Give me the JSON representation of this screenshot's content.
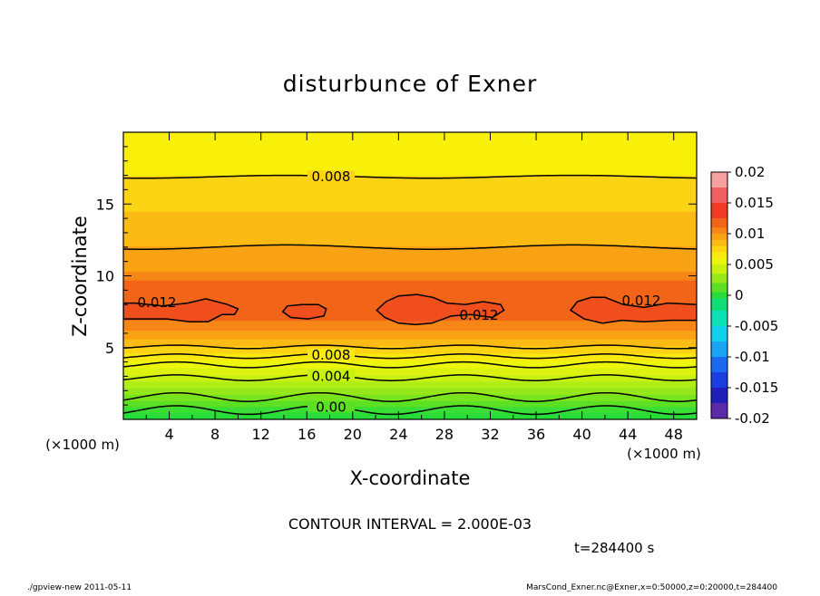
{
  "chart_data": {
    "type": "heatmap",
    "title": "disturbunce of Exner",
    "xlabel": "X-coordinate",
    "ylabel": "Z-coordinate",
    "x_unit": "(×1000 m)",
    "y_unit": "(×1000 m)",
    "xlim": [
      0,
      50
    ],
    "ylim": [
      0,
      20
    ],
    "x_ticks": [
      4,
      8,
      12,
      16,
      20,
      24,
      28,
      32,
      36,
      40,
      44,
      48
    ],
    "y_ticks": [
      5,
      10,
      15
    ],
    "colorbar": {
      "ticks": [
        "0.02",
        "0.015",
        "0.01",
        "0.005",
        "0",
        "-0.005",
        "-0.01",
        "-0.015",
        "-0.02"
      ],
      "levels": [
        {
          "lo": 0.0175,
          "hi": 0.02,
          "color": "#f7a0a0"
        },
        {
          "lo": 0.015,
          "hi": 0.0175,
          "color": "#f06060"
        },
        {
          "lo": 0.0125,
          "hi": 0.015,
          "color": "#f03c24"
        },
        {
          "lo": 0.011,
          "hi": 0.0125,
          "color": "#f26418"
        },
        {
          "lo": 0.01,
          "hi": 0.011,
          "color": "#f68616"
        },
        {
          "lo": 0.009,
          "hi": 0.01,
          "color": "#f9a214"
        },
        {
          "lo": 0.008,
          "hi": 0.009,
          "color": "#fbbb14"
        },
        {
          "lo": 0.007,
          "hi": 0.008,
          "color": "#fdd414"
        },
        {
          "lo": 0.006,
          "hi": 0.007,
          "color": "#f8ea10"
        },
        {
          "lo": 0.005,
          "hi": 0.006,
          "color": "#eef50c"
        },
        {
          "lo": 0.0035,
          "hi": 0.005,
          "color": "#c8f010"
        },
        {
          "lo": 0.002,
          "hi": 0.0035,
          "color": "#96e81a"
        },
        {
          "lo": 0.0005,
          "hi": 0.002,
          "color": "#5ce024"
        },
        {
          "lo": -0.0005,
          "hi": 0.0005,
          "color": "#28dc3a"
        },
        {
          "lo": -0.0025,
          "hi": -0.0005,
          "color": "#10dc78"
        },
        {
          "lo": -0.005,
          "hi": -0.0025,
          "color": "#0ce0b4"
        },
        {
          "lo": -0.0075,
          "hi": -0.005,
          "color": "#14d0f0"
        },
        {
          "lo": -0.01,
          "hi": -0.0075,
          "color": "#1aa4f4"
        },
        {
          "lo": -0.0125,
          "hi": -0.01,
          "color": "#1a6af0"
        },
        {
          "lo": -0.015,
          "hi": -0.0125,
          "color": "#1a3ee0"
        },
        {
          "lo": -0.0175,
          "hi": -0.015,
          "color": "#2020b8"
        },
        {
          "lo": -0.02,
          "hi": -0.0175,
          "color": "#5a2aa8"
        }
      ]
    },
    "bands": [
      {
        "z0": 0,
        "z1": 0.45,
        "color": "#28dc3a"
      },
      {
        "z0": 0.45,
        "z1": 0.9,
        "color": "#3ade34"
      },
      {
        "z0": 0.9,
        "z1": 1.3,
        "color": "#5ce024"
      },
      {
        "z0": 1.3,
        "z1": 1.75,
        "color": "#78e41e"
      },
      {
        "z0": 1.75,
        "z1": 2.2,
        "color": "#96e81a"
      },
      {
        "z0": 2.2,
        "z1": 2.65,
        "color": "#b0ec16"
      },
      {
        "z0": 2.65,
        "z1": 3.1,
        "color": "#c8f010"
      },
      {
        "z0": 3.1,
        "z1": 3.6,
        "color": "#ddf20e"
      },
      {
        "z0": 3.6,
        "z1": 4.1,
        "color": "#eef50c"
      },
      {
        "z0": 4.1,
        "z1": 4.6,
        "color": "#f8ea10"
      },
      {
        "z0": 4.6,
        "z1": 5.1,
        "color": "#fdd414"
      },
      {
        "z0": 5.1,
        "z1": 5.6,
        "color": "#fbbb14"
      },
      {
        "z0": 5.6,
        "z1": 6.2,
        "color": "#f9a214"
      },
      {
        "z0": 6.2,
        "z1": 6.9,
        "color": "#f68616"
      },
      {
        "z0": 6.9,
        "z1": 9.7,
        "color": "#f26418"
      },
      {
        "z0": 9.7,
        "z1": 10.3,
        "color": "#f68616"
      },
      {
        "z0": 10.3,
        "z1": 12.1,
        "color": "#f9a214"
      },
      {
        "z0": 12.1,
        "z1": 14.5,
        "color": "#fbbb14"
      },
      {
        "z0": 14.5,
        "z1": 17.0,
        "color": "#fdd414"
      },
      {
        "z0": 17.0,
        "z1": 20.0,
        "color": "#f8f008"
      }
    ],
    "contours": [
      {
        "value": "0.00",
        "base": 0.65,
        "amp": 0.3,
        "period": 12.5,
        "phase": 1.5
      },
      {
        "value": "",
        "base": 1.55,
        "amp": 0.3,
        "period": 12.5,
        "phase": 1.5
      },
      {
        "value": "0.004",
        "base": 2.9,
        "amp": 0.2,
        "period": 12.5,
        "phase": 1.5
      },
      {
        "value": "",
        "base": 3.8,
        "amp": 0.2,
        "period": 12.5,
        "phase": 1.5
      },
      {
        "value": "0.008",
        "base": 4.4,
        "amp": 0.15,
        "period": 12.5,
        "phase": 1.5
      },
      {
        "value": "",
        "base": 5.05,
        "amp": 0.12,
        "period": 12.5,
        "phase": 1.5
      },
      {
        "value": "",
        "base": 12.0,
        "amp": 0.15,
        "period": 25,
        "phase": 8
      },
      {
        "value": "0.008",
        "base": 16.9,
        "amp": 0.1,
        "period": 25,
        "phase": 8
      }
    ],
    "cells": [
      {
        "value": "0.012",
        "x": [
          0,
          0,
          1.0,
          3.4,
          5.6,
          7.2,
          9.1,
          10.0,
          9.7,
          8.6,
          7.4,
          5.8,
          3.8,
          1.2
        ],
        "z": [
          7.0,
          8.1,
          8.1,
          7.9,
          8.1,
          8.4,
          8.0,
          7.7,
          7.3,
          7.3,
          6.8,
          6.8,
          7.0,
          7.0
        ]
      },
      {
        "value": "",
        "x": [
          13.9,
          14.3,
          15.6,
          17.0,
          17.7,
          17.5,
          16.1,
          14.6
        ],
        "z": [
          7.5,
          7.9,
          8.0,
          8.0,
          7.7,
          7.2,
          7.0,
          7.1
        ]
      },
      {
        "value": "0.012",
        "x": [
          22.1,
          22.9,
          24.0,
          25.6,
          27.0,
          28.2,
          29.8,
          31.4,
          32.9,
          33.2,
          32.2,
          30.3,
          28.6,
          26.9,
          25.5,
          24.0,
          22.8
        ],
        "z": [
          7.6,
          8.2,
          8.6,
          8.7,
          8.5,
          8.1,
          8.0,
          8.2,
          8.0,
          7.6,
          7.1,
          7.3,
          7.2,
          6.7,
          6.6,
          6.7,
          7.1
        ]
      },
      {
        "value": "0.012",
        "x": [
          39.0,
          39.6,
          40.8,
          42.0,
          43.6,
          45.4,
          47.5,
          50,
          50,
          47.8,
          45.4,
          43.5,
          41.8,
          40.2
        ],
        "z": [
          7.6,
          8.2,
          8.5,
          8.5,
          8.0,
          7.8,
          8.1,
          8.0,
          6.9,
          6.9,
          6.8,
          6.9,
          6.7,
          7.0
        ]
      }
    ],
    "annotations": {
      "contour_interval": "CONTOUR INTERVAL = 2.000E-03",
      "time": "t=284400 s"
    }
  },
  "footer": {
    "left": "./gpview-new   2011-05-11",
    "right": "MarsCond_Exner.nc@Exner,x=0:50000,z=0:20000,t=284400"
  }
}
